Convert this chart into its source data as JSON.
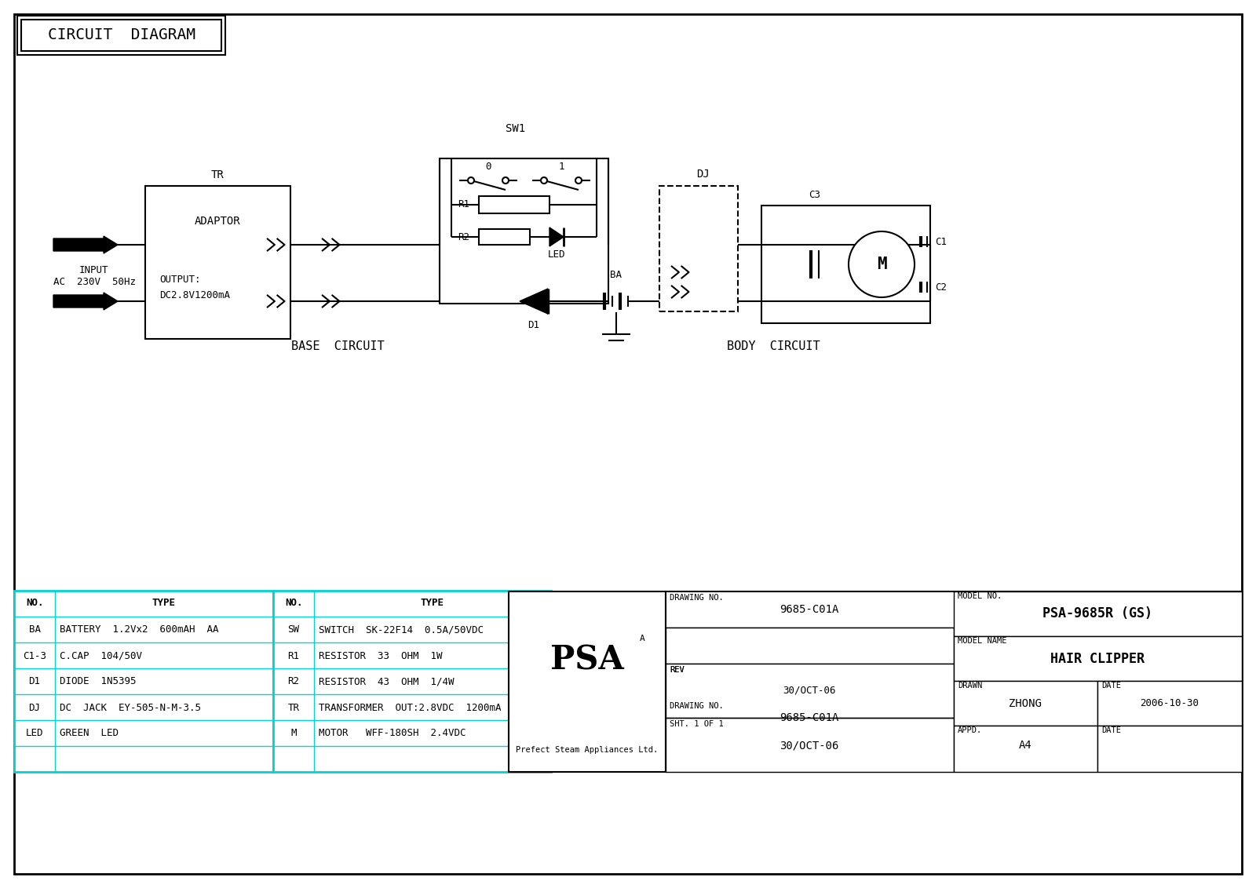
{
  "title": "CIRCUIT  DIAGRAM",
  "bg_color": "#ffffff",
  "line_color": "#000000",
  "cyan_color": "#00d4d4",
  "base_circuit_label": "BASE  CIRCUIT",
  "body_circuit_label": "BODY  CIRCUIT",
  "bom_left": {
    "headers": [
      "NO.",
      "TYPE"
    ],
    "rows": [
      [
        "BA",
        "BATTERY  1.2Vx2  600mAH  AA"
      ],
      [
        "C1-3",
        "C.CAP  104/50V"
      ],
      [
        "D1",
        "DIODE  1N5395"
      ],
      [
        "DJ",
        "DC  JACK  EY-505-N-M-3.5"
      ],
      [
        "LED",
        "GREEN  LED"
      ],
      [
        "",
        ""
      ]
    ]
  },
  "bom_right": {
    "headers": [
      "NO.",
      "TYPE"
    ],
    "rows": [
      [
        "SW",
        "SWITCH  SK-22F14  0.5A/50VDC"
      ],
      [
        "R1",
        "RESISTOR  33  OHM  1W"
      ],
      [
        "R2",
        "RESISTOR  43  OHM  1/4W"
      ],
      [
        "TR",
        "TRANSFORMER  OUT:2.8VDC  1200mA"
      ],
      [
        "M",
        "MOTOR   WFF-180SH  2.4VDC"
      ],
      [
        "",
        ""
      ]
    ]
  },
  "tb": {
    "model_no_label": "MODEL NO.",
    "model_no": "PSA-9685R (GS)",
    "model_name_label": "MODEL NAME",
    "model_name": "HAIR CLIPPER",
    "drawn_label": "DRAWN",
    "drawn_value": "ZHONG",
    "date_label": "DATE",
    "date_value": "2006-10-30",
    "appd_label": "APPD.",
    "appd_date_label": "DATE",
    "drawing_no_label": "DRAWING NO.",
    "drawing_no": "9685-C01A",
    "rev_label": "REV",
    "rev_value": "30/OCT-06",
    "sht_label": "SHT. 1 OF 1",
    "size_label": "A4",
    "psa_sub": "Prefect Steam Appliances Ltd."
  }
}
